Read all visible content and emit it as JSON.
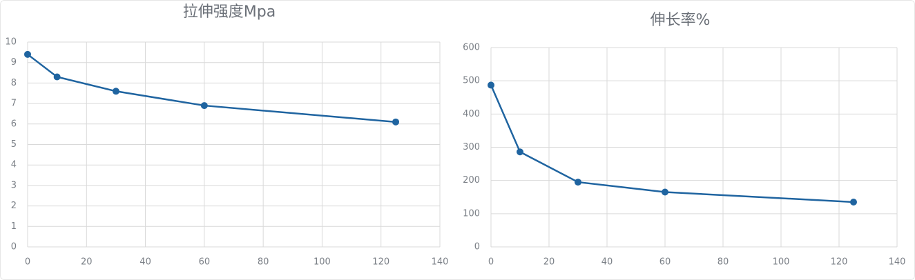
{
  "chart_data": [
    {
      "type": "line",
      "title": "拉伸强度Mpa",
      "x": [
        0,
        10,
        30,
        60,
        125
      ],
      "values": [
        9.4,
        8.3,
        7.6,
        6.9,
        6.1
      ],
      "color": "#1f64a0",
      "xlim": [
        0,
        140
      ],
      "xticks": [
        0,
        20,
        40,
        60,
        80,
        100,
        120,
        140
      ],
      "ylim": [
        0,
        10
      ],
      "yticks": [
        0,
        1,
        2,
        3,
        4,
        5,
        6,
        7,
        8,
        9,
        10
      ],
      "grid": true
    },
    {
      "type": "line",
      "title": "伸长率%",
      "x": [
        0,
        10,
        30,
        60,
        125
      ],
      "values": [
        487,
        286,
        195,
        165,
        135
      ],
      "color": "#1f64a0",
      "xlim": [
        0,
        140
      ],
      "xticks": [
        0,
        20,
        40,
        60,
        80,
        100,
        120,
        140
      ],
      "ylim": [
        0,
        600
      ],
      "yticks": [
        0,
        100,
        200,
        300,
        400,
        500,
        600
      ],
      "grid": true
    }
  ]
}
